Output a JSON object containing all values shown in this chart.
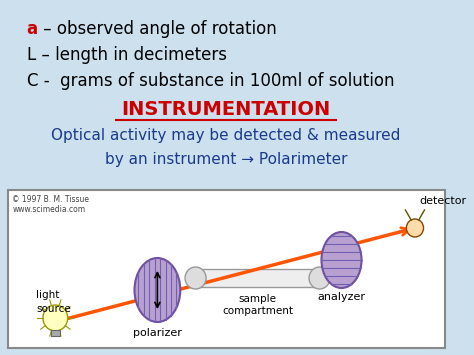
{
  "bg_color": "#cce0ee",
  "text_line1_prefix": "a",
  "text_line1_prefix_color": "#cc0000",
  "text_line1_rest": " – observed angle of rotation",
  "text_line2": "L – length in decimeters",
  "text_line3": "C -  grams of substance in 100ml of solution",
  "text_color": "#000000",
  "heading": "INSTRUMENTATION",
  "heading_color": "#cc0000",
  "subtext_line1": "Optical activity may be detected & measured",
  "subtext_line2": "by an instrument → Polarimeter",
  "subtext_color": "#1a3a8c",
  "diagram_bg": "#ffffff",
  "diagram_border": "#888888",
  "copyright": "© 1997 B. M. Tissue\nwww.scimedia.com",
  "beam_color": "#ff5500",
  "disk_fill": "#b8a0d0",
  "disk_edge": "#7050a0",
  "disk_lines": "#7060b0",
  "label_color": "#000000",
  "tube_outline": "#999999"
}
